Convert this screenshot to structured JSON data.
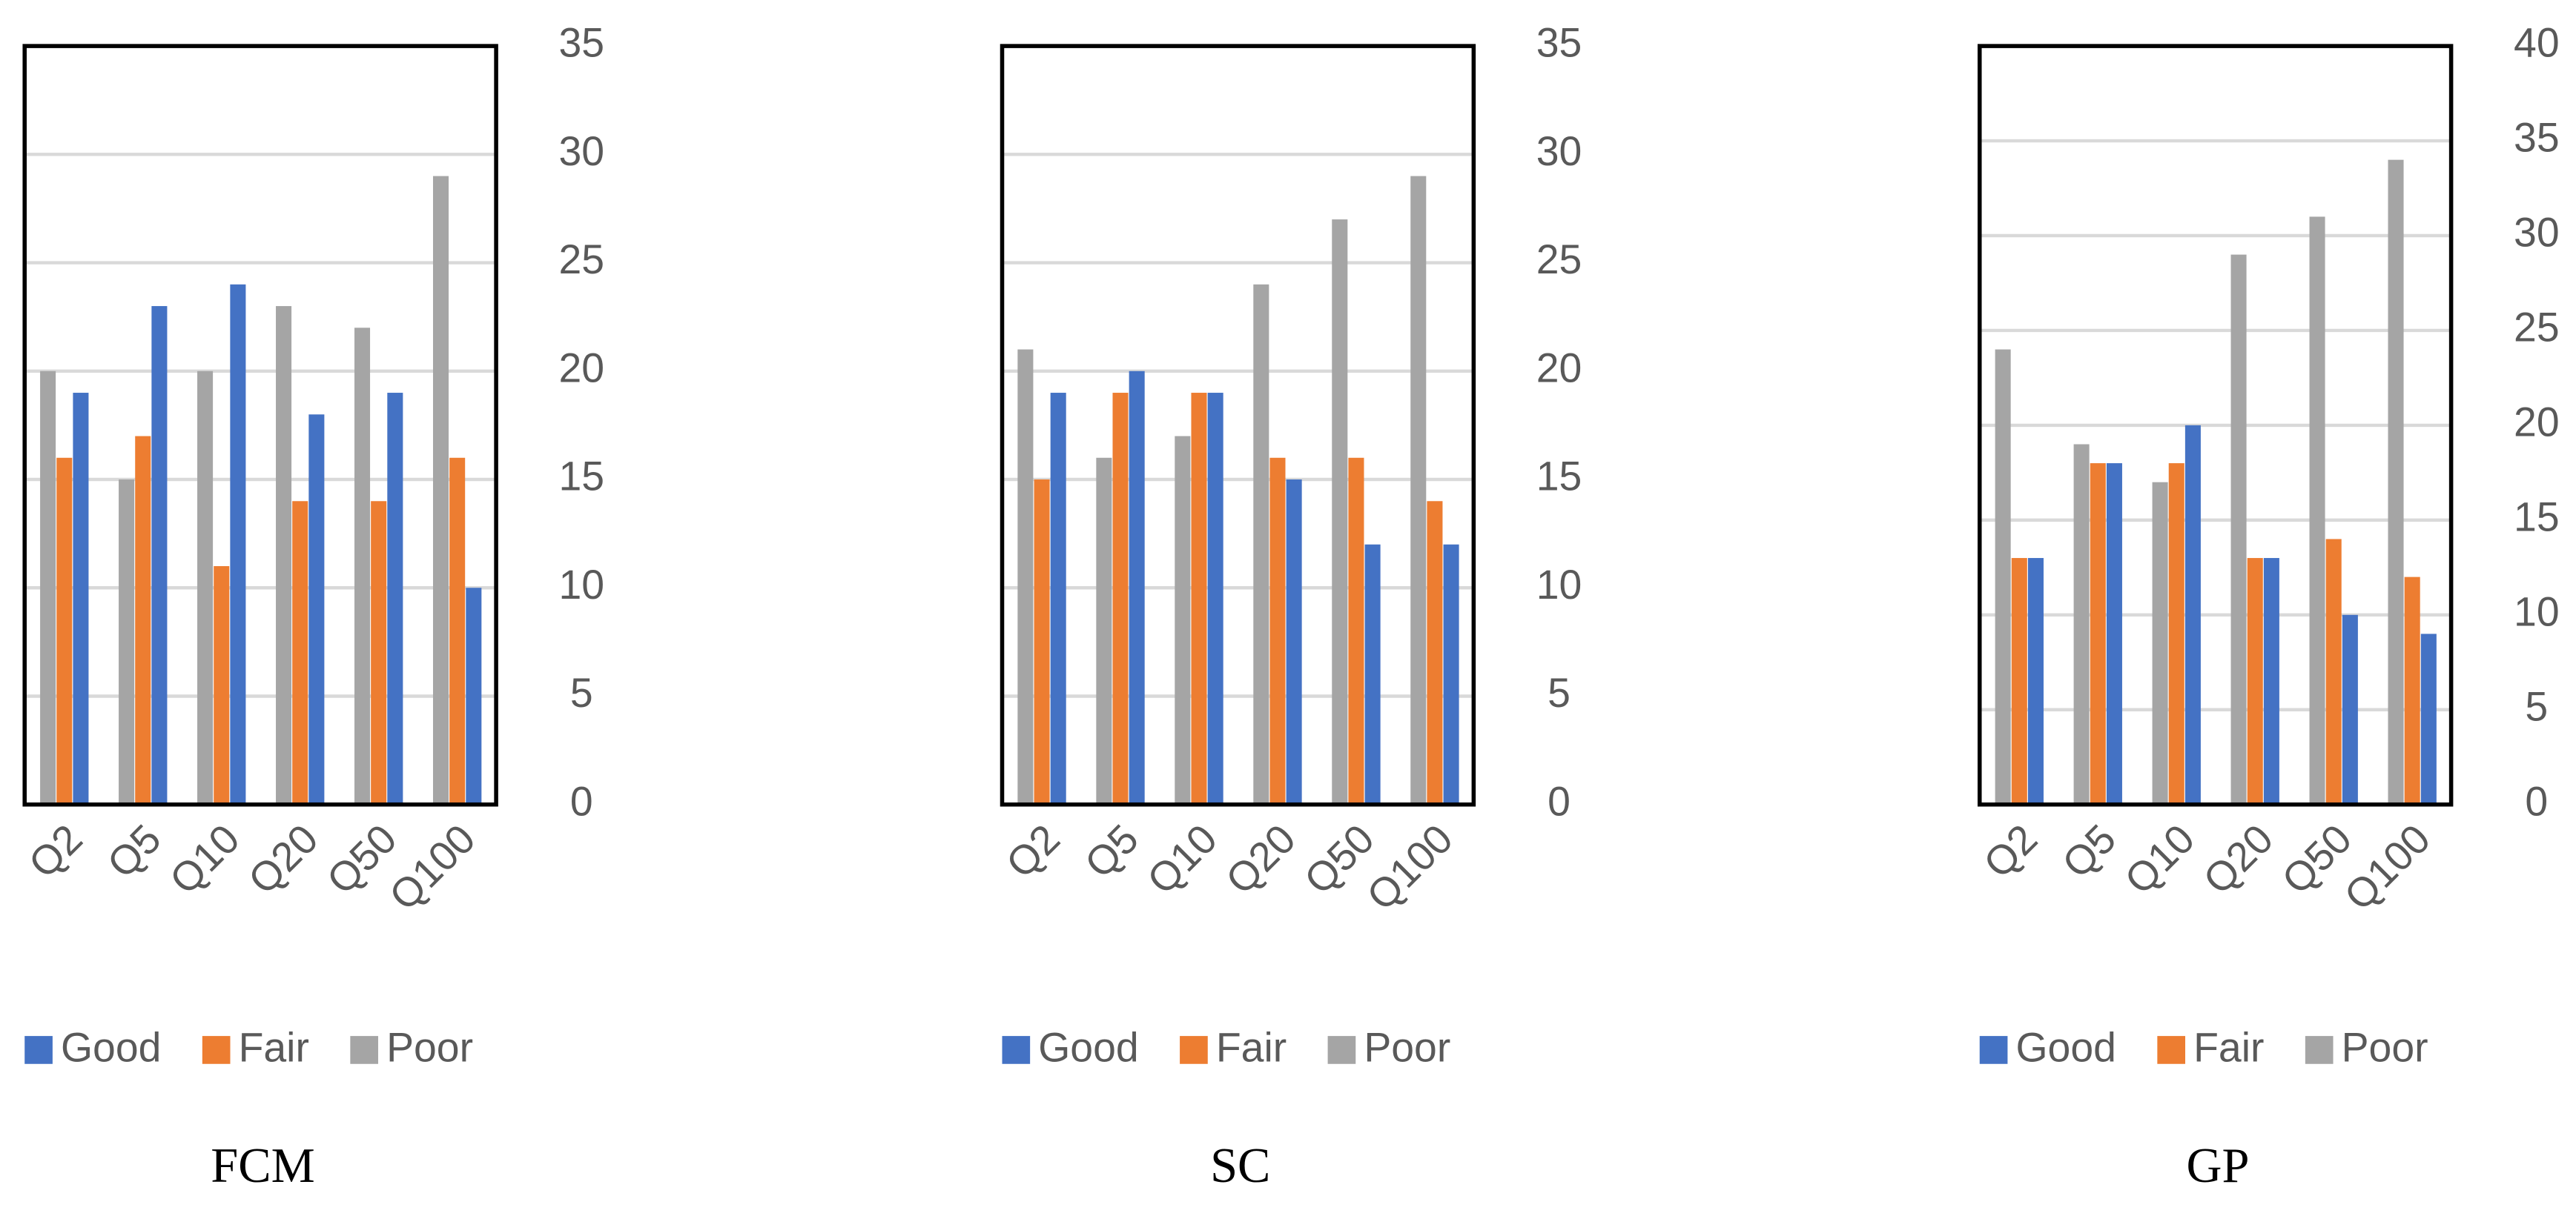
{
  "chart_data": [
    {
      "type": "bar",
      "title": "FCM",
      "categories": [
        "Q2",
        "Q5",
        "Q10",
        "Q20",
        "Q50",
        "Q100"
      ],
      "series": [
        {
          "name": "Good",
          "color": "#4472c4",
          "values": [
            19,
            23,
            24,
            18,
            19,
            10
          ]
        },
        {
          "name": "Fair",
          "color": "#ed7d31",
          "values": [
            16,
            17,
            11,
            14,
            14,
            16
          ]
        },
        {
          "name": "Poor",
          "color": "#a5a5a5",
          "values": [
            20,
            15,
            20,
            23,
            22,
            29
          ]
        }
      ],
      "ylim": [
        0,
        35
      ],
      "yticks": [
        0,
        5,
        10,
        15,
        20,
        25,
        30,
        35
      ],
      "grid": true,
      "legend": "bottom"
    },
    {
      "type": "bar",
      "title": "SC",
      "categories": [
        "Q2",
        "Q5",
        "Q10",
        "Q20",
        "Q50",
        "Q100"
      ],
      "series": [
        {
          "name": "Good",
          "color": "#4472c4",
          "values": [
            19,
            20,
            19,
            15,
            12,
            12
          ]
        },
        {
          "name": "Fair",
          "color": "#ed7d31",
          "values": [
            15,
            19,
            19,
            16,
            16,
            14
          ]
        },
        {
          "name": "Poor",
          "color": "#a5a5a5",
          "values": [
            21,
            16,
            17,
            24,
            27,
            29
          ]
        }
      ],
      "ylim": [
        0,
        35
      ],
      "yticks": [
        0,
        5,
        10,
        15,
        20,
        25,
        30,
        35
      ],
      "grid": true,
      "legend": "bottom"
    },
    {
      "type": "bar",
      "title": "GP",
      "categories": [
        "Q2",
        "Q5",
        "Q10",
        "Q20",
        "Q50",
        "Q100"
      ],
      "series": [
        {
          "name": "Good",
          "color": "#4472c4",
          "values": [
            13,
            18,
            20,
            13,
            10,
            9
          ]
        },
        {
          "name": "Fair",
          "color": "#ed7d31",
          "values": [
            13,
            18,
            18,
            13,
            14,
            12
          ]
        },
        {
          "name": "Poor",
          "color": "#a5a5a5",
          "values": [
            24,
            19,
            17,
            29,
            31,
            34
          ]
        }
      ],
      "ylim": [
        0,
        40
      ],
      "yticks": [
        0,
        5,
        10,
        15,
        20,
        25,
        30,
        35,
        40
      ],
      "grid": true,
      "legend": "bottom"
    }
  ]
}
